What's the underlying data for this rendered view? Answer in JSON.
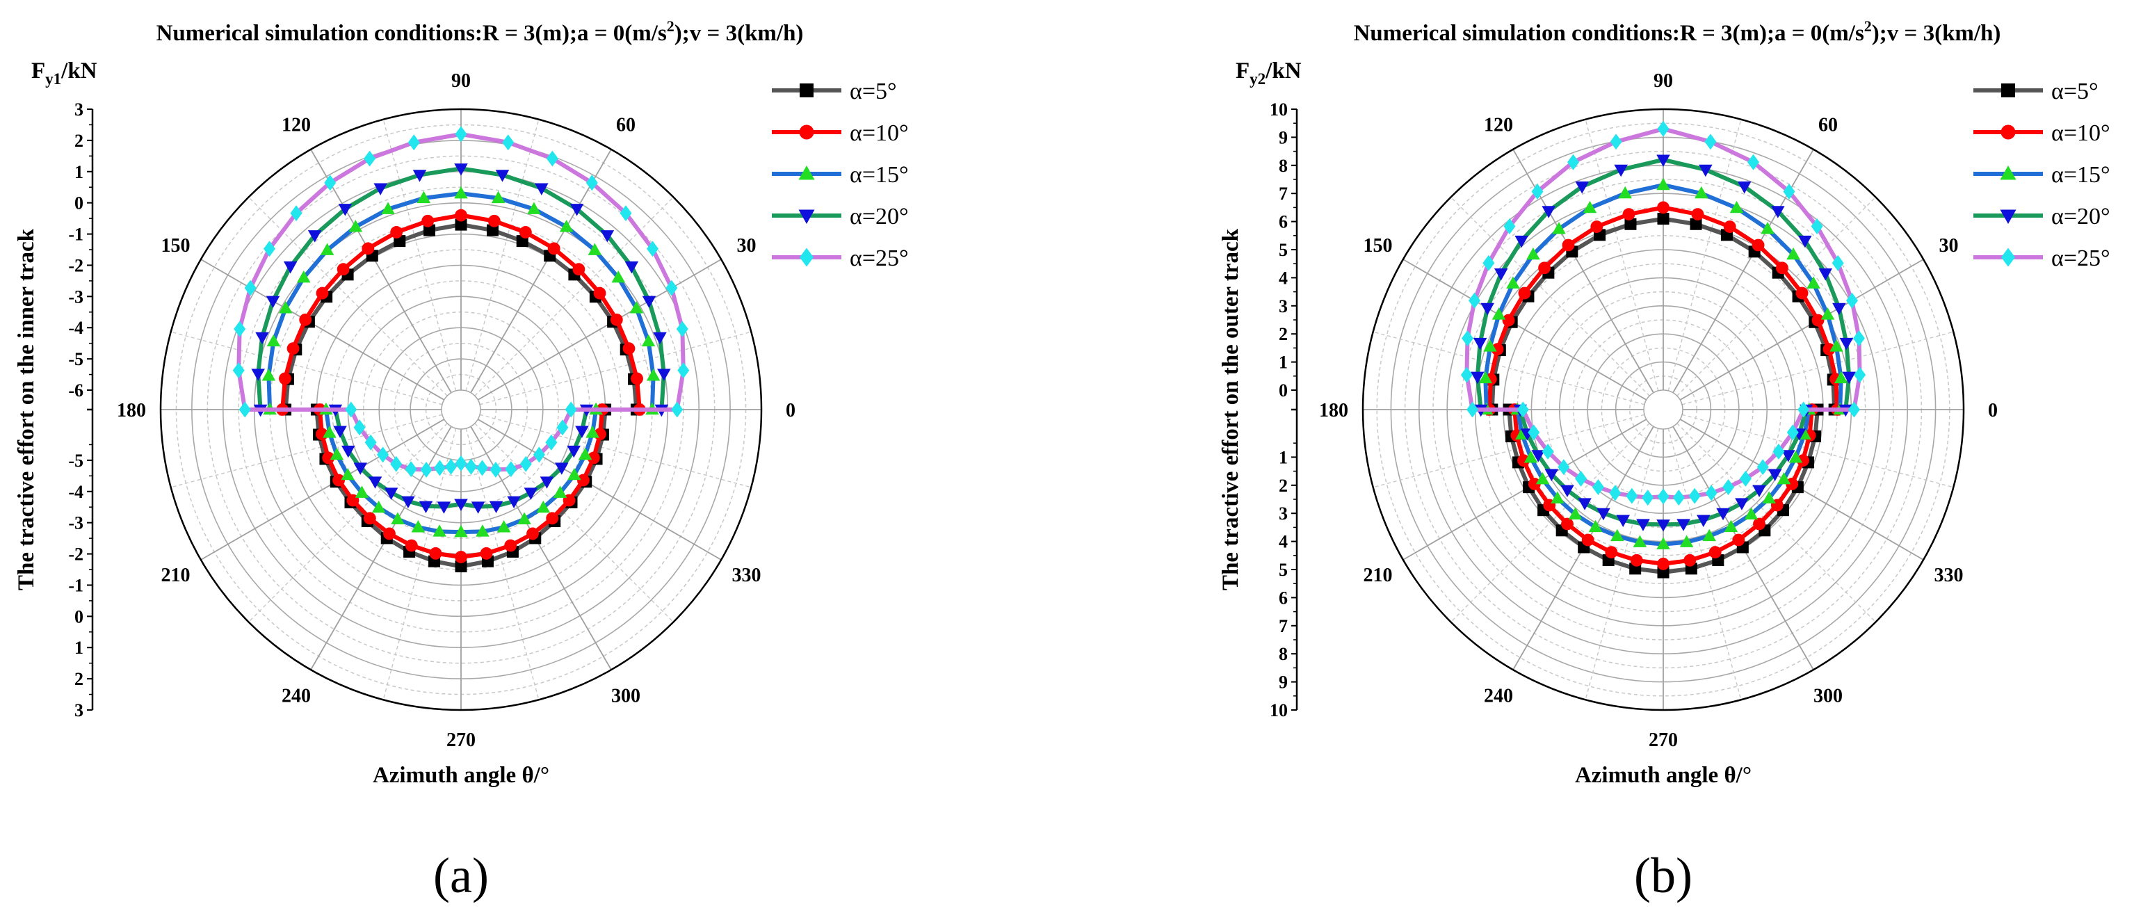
{
  "figure": {
    "panel_labels": [
      "(a)",
      "(b)"
    ]
  },
  "chart_data": [
    {
      "type": "line",
      "polar": true,
      "panel": "(a)",
      "title": "Numerical simulation conditions:R = 3(m);a = 0(m/s²);v = 3(km/h)",
      "title_parts": [
        "Numerical simulation conditions:R = 3(m);a = 0(m/s",
        "2",
        ");v = 3(km/h)"
      ],
      "ylabel": "The tractive effort on the inner track",
      "unit_label": {
        "base": "F",
        "sub": "y1",
        "suffix": "/kN"
      },
      "xlabel": "Azimuth angle θ/°",
      "angle_ticks": [
        "0",
        "30",
        "60",
        "90",
        "120",
        "150",
        "180",
        "210",
        "240",
        "270",
        "300",
        "330"
      ],
      "radial_ticks_upper": [
        "3",
        "2",
        "1",
        "0",
        "-1",
        "-2",
        "-3",
        "-4",
        "-5",
        "-6"
      ],
      "radial_ticks_lower": [
        "-5",
        "-4",
        "-3",
        "-2",
        "-1",
        "0",
        "1",
        "2",
        "3"
      ],
      "rlim": [
        -6,
        3
      ],
      "series": [
        {
          "name": "α=5°",
          "color": "#555555",
          "marker": "square",
          "upper_r": [
            -0.7,
            -0.9,
            -1.0,
            -1.0,
            -1.0
          ],
          "lower_r": [
            -1.6,
            -1.8,
            -2.0,
            -2.0,
            -2.0
          ]
        },
        {
          "name": "α=10°",
          "color": "#ff0000",
          "marker": "circle",
          "upper_r": [
            -0.4,
            -0.6,
            -0.8,
            -0.9,
            -0.9
          ],
          "lower_r": [
            -1.9,
            -2.0,
            -2.1,
            -2.1,
            -2.1
          ]
        },
        {
          "name": "α=15°",
          "color": "#1f6fd6",
          "marker": "triangle-up",
          "upper_r": [
            0.3,
            0.2,
            0.0,
            -0.2,
            -0.5
          ],
          "lower_r": [
            -2.7,
            -2.6,
            -2.5,
            -2.4,
            -2.3
          ]
        },
        {
          "name": "α=20°",
          "color": "#1a9a5a",
          "marker": "triangle-down",
          "upper_r": [
            1.1,
            0.9,
            0.6,
            0.2,
            -0.2
          ],
          "lower_r": [
            -3.6,
            -3.3,
            -3.1,
            -2.8,
            -2.6
          ]
        },
        {
          "name": "α=25°",
          "color": "#cc77dd",
          "marker": "diamond",
          "upper_r": [
            2.2,
            1.9,
            1.5,
            1.0,
            0.3
          ],
          "lower_r": [
            -4.9,
            -4.6,
            -4.0,
            -3.6,
            -3.1
          ]
        }
      ]
    },
    {
      "type": "line",
      "polar": true,
      "panel": "(b)",
      "title": "Numerical simulation conditions:R = 3(m);a = 0(m/s²);v = 3(km/h)",
      "title_parts": [
        "Numerical simulation conditions:R = 3(m);a = 0(m/s",
        "2",
        ");v = 3(km/h)"
      ],
      "ylabel": "The tractive effort on the outer track",
      "unit_label": {
        "base": "F",
        "sub": "y2",
        "suffix": "/kN"
      },
      "xlabel": "Azimuth angle θ/°",
      "angle_ticks": [
        "0",
        "30",
        "60",
        "90",
        "120",
        "150",
        "180",
        "210",
        "240",
        "270",
        "300",
        "330"
      ],
      "radial_ticks_upper": [
        "10",
        "9",
        "8",
        "7",
        "6",
        "5",
        "4",
        "3",
        "2",
        "1",
        "0"
      ],
      "radial_ticks_lower": [
        "1",
        "2",
        "3",
        "4",
        "5",
        "6",
        "7",
        "8",
        "9",
        "10"
      ],
      "rlim": [
        0,
        10
      ],
      "series": [
        {
          "name": "α=5°",
          "color": "#555555",
          "marker": "square",
          "upper_r": [
            6.1,
            5.9,
            5.6,
            5.5,
            5.4
          ],
          "lower_r": [
            5.1,
            5.0,
            4.9,
            4.8,
            4.8
          ]
        },
        {
          "name": "α=10°",
          "color": "#ff0000",
          "marker": "circle",
          "upper_r": [
            6.5,
            6.2,
            5.8,
            5.6,
            5.5
          ],
          "lower_r": [
            4.8,
            4.7,
            4.6,
            4.6,
            4.6
          ]
        },
        {
          "name": "α=15°",
          "color": "#1f6fd6",
          "marker": "triangle-up",
          "upper_r": [
            7.3,
            6.9,
            6.4,
            5.9,
            5.6
          ],
          "lower_r": [
            4.1,
            4.1,
            4.2,
            4.3,
            4.5
          ]
        },
        {
          "name": "α=20°",
          "color": "#1a9a5a",
          "marker": "triangle-down",
          "upper_r": [
            8.2,
            7.7,
            7.0,
            6.3,
            5.8
          ],
          "lower_r": [
            3.4,
            3.5,
            3.7,
            4.0,
            4.4
          ]
        },
        {
          "name": "α=25°",
          "color": "#cc77dd",
          "marker": "diamond",
          "upper_r": [
            9.3,
            8.6,
            7.6,
            6.8,
            6.1
          ],
          "lower_r": [
            2.4,
            2.6,
            3.0,
            3.6,
            4.3
          ]
        }
      ]
    }
  ]
}
